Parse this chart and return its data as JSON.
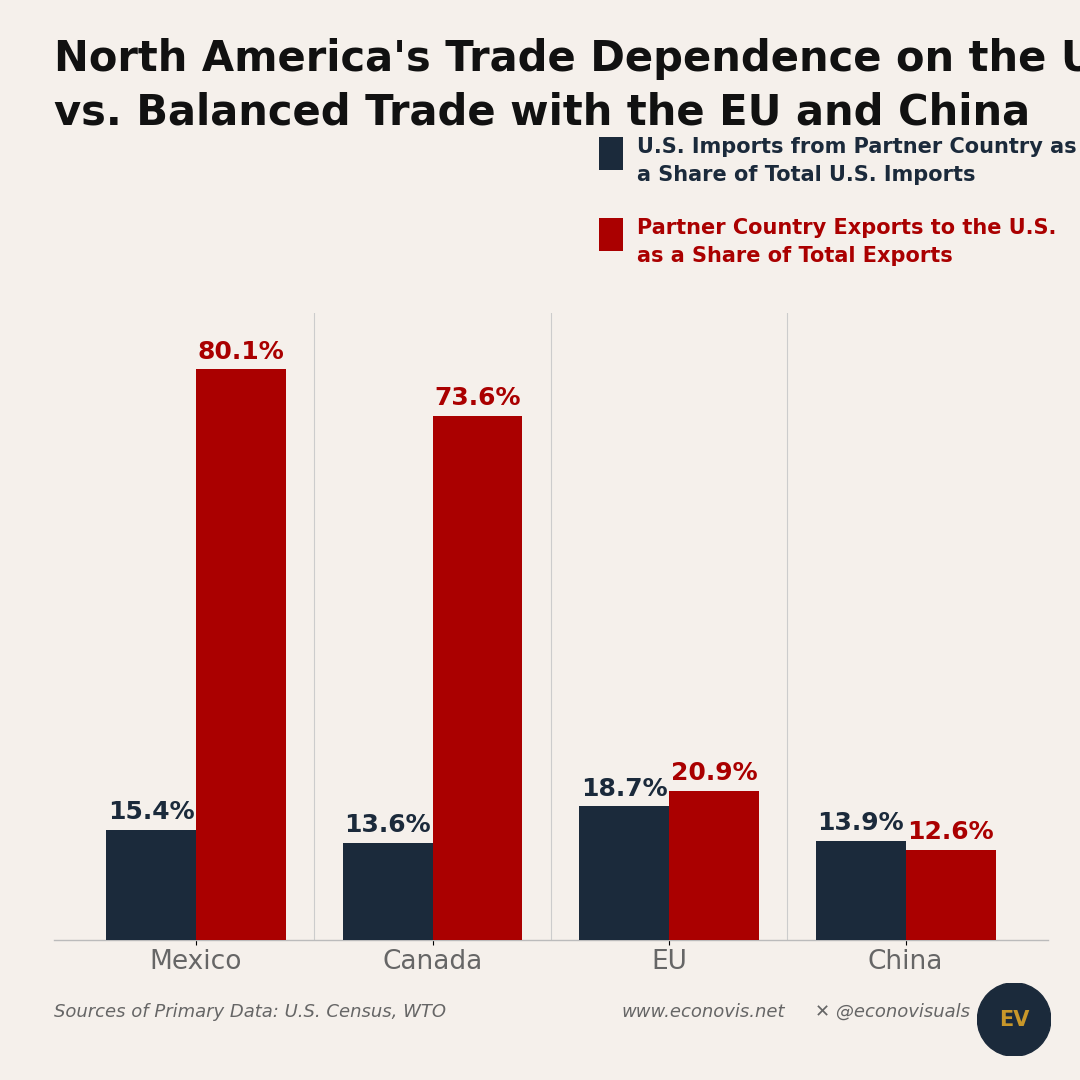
{
  "title_line1": "North America's Trade Dependence on the U.S.",
  "title_line2": "vs. Balanced Trade with the EU and China",
  "background_color": "#F5F0EB",
  "categories": [
    "Mexico",
    "Canada",
    "EU",
    "China"
  ],
  "imports_values": [
    15.4,
    13.6,
    18.7,
    13.9
  ],
  "exports_values": [
    80.1,
    73.6,
    20.9,
    12.6
  ],
  "imports_color": "#1B2A3B",
  "exports_color": "#AA0000",
  "legend_imports_line1": "U.S. Imports from Partner Country as",
  "legend_imports_line2": "a Share of Total U.S. Imports",
  "legend_exports_line1": "Partner Country Exports to the U.S.",
  "legend_exports_line2": "as a Share of Total Exports",
  "source_text": "Sources of Primary Data: U.S. Census, WTO",
  "website_text": "www.econovis.net",
  "social_text": "@econovisuals",
  "bar_width": 0.38,
  "ylim_max": 88,
  "title_fontsize": 30,
  "tick_fontsize": 19,
  "legend_fontsize": 15,
  "footer_fontsize": 13,
  "value_fontsize": 18
}
